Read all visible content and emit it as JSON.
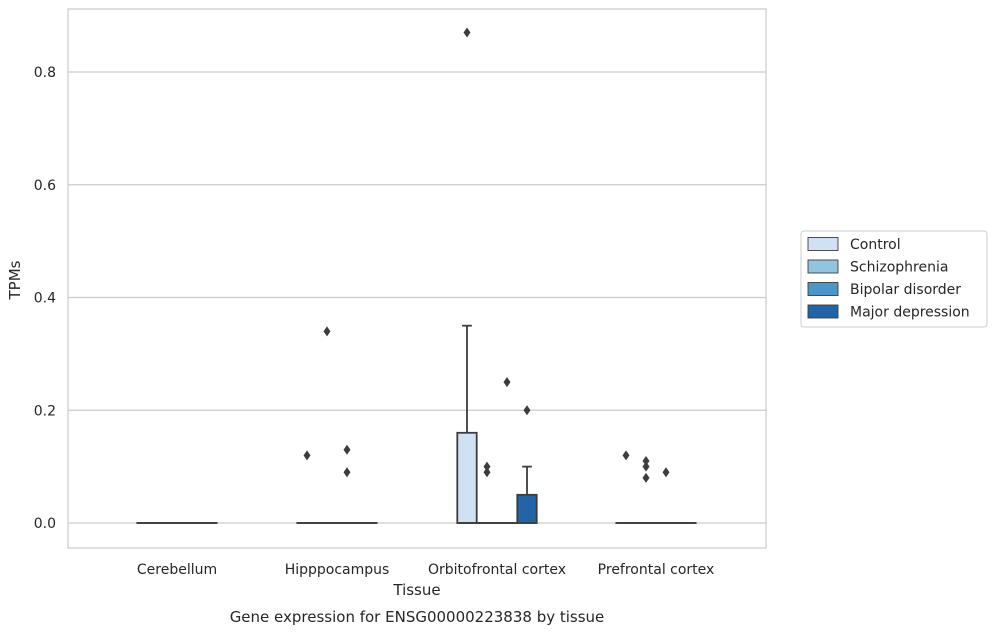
{
  "chart_data": {
    "type": "box",
    "title": "Gene expression for ENSG00000223838 by tissue",
    "xlabel": "Tissue",
    "ylabel": "TPMs",
    "categories": [
      "Cerebellum",
      "Hipppocampus",
      "Orbitofrontal cortex",
      "Prefrontal cortex"
    ],
    "ylim": [
      -0.042,
      0.918
    ],
    "yticks": [
      0.0,
      0.2,
      0.4,
      0.6,
      0.8
    ],
    "ytick_labels": [
      "0.0",
      "0.2",
      "0.4",
      "0.6",
      "0.8"
    ],
    "grid": "horizontal",
    "legend_position": "right",
    "series": [
      {
        "name": "Control",
        "color": "#cfe1f2",
        "boxes": [
          {
            "category": "Cerebellum",
            "q1": 0,
            "median": 0,
            "q3": 0,
            "whisker_low": 0,
            "whisker_high": 0,
            "outliers": []
          },
          {
            "category": "Hipppocampus",
            "q1": 0,
            "median": 0,
            "q3": 0,
            "whisker_low": 0,
            "whisker_high": 0,
            "outliers": [
              0.12
            ]
          },
          {
            "category": "Orbitofrontal cortex",
            "q1": 0,
            "median": 0,
            "q3": 0.16,
            "whisker_low": 0,
            "whisker_high": 0.35,
            "outliers": [
              0.87
            ]
          },
          {
            "category": "Prefrontal cortex",
            "q1": 0,
            "median": 0,
            "q3": 0,
            "whisker_low": 0,
            "whisker_high": 0,
            "outliers": [
              0.12
            ]
          }
        ]
      },
      {
        "name": "Schizophrenia",
        "color": "#93c4de",
        "boxes": [
          {
            "category": "Cerebellum",
            "q1": 0,
            "median": 0,
            "q3": 0,
            "whisker_low": 0,
            "whisker_high": 0,
            "outliers": []
          },
          {
            "category": "Hipppocampus",
            "q1": 0,
            "median": 0,
            "q3": 0,
            "whisker_low": 0,
            "whisker_high": 0,
            "outliers": [
              0.34
            ]
          },
          {
            "category": "Orbitofrontal cortex",
            "q1": 0,
            "median": 0,
            "q3": 0,
            "whisker_low": 0,
            "whisker_high": 0,
            "outliers": [
              0.09,
              0.1
            ]
          },
          {
            "category": "Prefrontal cortex",
            "q1": 0,
            "median": 0,
            "q3": 0,
            "whisker_low": 0,
            "whisker_high": 0,
            "outliers": [
              0.08,
              0.1,
              0.11
            ]
          }
        ]
      },
      {
        "name": "Bipolar disorder",
        "color": "#4a98c9",
        "boxes": [
          {
            "category": "Cerebellum",
            "q1": 0,
            "median": 0,
            "q3": 0,
            "whisker_low": 0,
            "whisker_high": 0,
            "outliers": []
          },
          {
            "category": "Hipppocampus",
            "q1": 0,
            "median": 0,
            "q3": 0,
            "whisker_low": 0,
            "whisker_high": 0,
            "outliers": [
              0.09,
              0.13
            ]
          },
          {
            "category": "Orbitofrontal cortex",
            "q1": 0,
            "median": 0,
            "q3": 0,
            "whisker_low": 0,
            "whisker_high": 0,
            "outliers": [
              0.25
            ]
          },
          {
            "category": "Prefrontal cortex",
            "q1": 0,
            "median": 0,
            "q3": 0,
            "whisker_low": 0,
            "whisker_high": 0,
            "outliers": [
              0.09
            ]
          }
        ]
      },
      {
        "name": "Major depression",
        "color": "#2264a6",
        "boxes": [
          {
            "category": "Cerebellum",
            "q1": 0,
            "median": 0,
            "q3": 0,
            "whisker_low": 0,
            "whisker_high": 0,
            "outliers": []
          },
          {
            "category": "Hipppocampus",
            "q1": 0,
            "median": 0,
            "q3": 0,
            "whisker_low": 0,
            "whisker_high": 0,
            "outliers": []
          },
          {
            "category": "Orbitofrontal cortex",
            "q1": 0,
            "median": 0,
            "q3": 0.05,
            "whisker_low": 0,
            "whisker_high": 0.1,
            "outliers": [
              0.2
            ]
          },
          {
            "category": "Prefrontal cortex",
            "q1": 0,
            "median": 0,
            "q3": 0,
            "whisker_low": 0,
            "whisker_high": 0,
            "outliers": []
          }
        ]
      }
    ]
  }
}
